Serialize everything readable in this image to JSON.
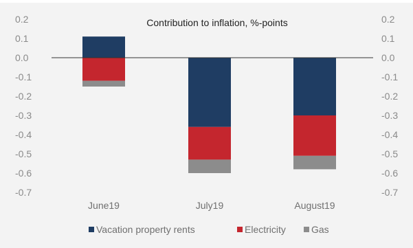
{
  "chart_data": {
    "type": "bar",
    "stacked": true,
    "title": "Contribution to inflation, %-points",
    "xlabel": "",
    "ylabel": "",
    "categories": [
      "June19",
      "July19",
      "August19"
    ],
    "ylim": [
      -0.7,
      0.2
    ],
    "yticks": [
      "0.2",
      "0.1",
      "0.0",
      "-0.1",
      "-0.2",
      "-0.3",
      "-0.4",
      "-0.5",
      "-0.6",
      "-0.7"
    ],
    "grid": false,
    "legend_position": "bottom",
    "series": [
      {
        "name": "Vacation property rents",
        "color": "#1f3d63",
        "values": [
          0.11,
          -0.36,
          -0.3
        ]
      },
      {
        "name": "Electricity",
        "color": "#c4262e",
        "values": [
          -0.12,
          -0.17,
          -0.21
        ]
      },
      {
        "name": "Gas",
        "color": "#8c8c8c",
        "values": [
          -0.03,
          -0.07,
          -0.07
        ]
      }
    ]
  }
}
